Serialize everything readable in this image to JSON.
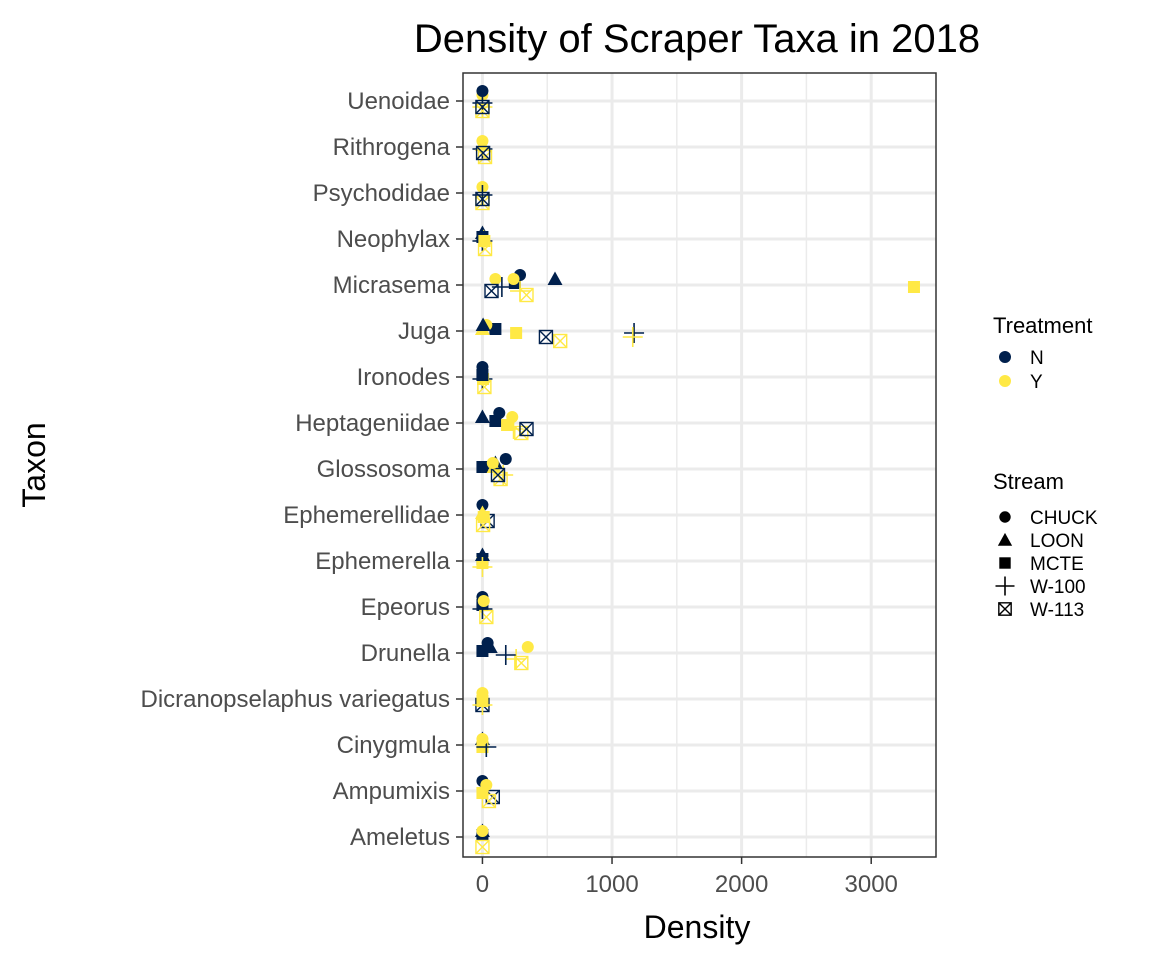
{
  "chart_data": {
    "type": "scatter",
    "title": "Density of Scraper Taxa in 2018",
    "xlabel": "Density",
    "ylabel": "Taxon",
    "xlim": [
      -150,
      3500
    ],
    "x_ticks": [
      0,
      1000,
      2000,
      3000
    ],
    "x_tick_labels": [
      "0",
      "1000",
      "2000",
      "3000"
    ],
    "categories": [
      "Uenoidae",
      "Rithrogena",
      "Psychodidae",
      "Neophylax",
      "Micrasema",
      "Juga",
      "Ironodes",
      "Heptageniidae",
      "Glossosoma",
      "Ephemerellidae",
      "Ephemerella",
      "Epeorus",
      "Drunella",
      "Dicranopselaphus variegatus",
      "Cinygmula",
      "Ampumixis",
      "Ameletus"
    ],
    "grid": true,
    "legend_position": "right",
    "legends": {
      "treatment": {
        "title": "Treatment",
        "entries": [
          {
            "label": "N",
            "color": "#00204d"
          },
          {
            "label": "Y",
            "color": "#ffe945"
          }
        ]
      },
      "stream": {
        "title": "Stream",
        "entries": [
          {
            "label": "CHUCK",
            "shape": "circle"
          },
          {
            "label": "LOON",
            "shape": "triangle"
          },
          {
            "label": "MCTE",
            "shape": "square"
          },
          {
            "label": "W-100",
            "shape": "plus"
          },
          {
            "label": "W-113",
            "shape": "boxcross"
          }
        ]
      }
    },
    "points": [
      {
        "taxon": "Uenoidae",
        "density": 0,
        "treatment": "Y",
        "stream": "CHUCK"
      },
      {
        "taxon": "Uenoidae",
        "density": 0,
        "treatment": "Y",
        "stream": "W-100"
      },
      {
        "taxon": "Uenoidae",
        "density": 0,
        "treatment": "N",
        "stream": "W-100"
      },
      {
        "taxon": "Uenoidae",
        "density": 0,
        "treatment": "N",
        "stream": "CHUCK"
      },
      {
        "taxon": "Uenoidae",
        "density": 0,
        "treatment": "Y",
        "stream": "W-113"
      },
      {
        "taxon": "Uenoidae",
        "density": 0,
        "treatment": "N",
        "stream": "W-113"
      },
      {
        "taxon": "Rithrogena",
        "density": 0,
        "treatment": "Y",
        "stream": "CHUCK"
      },
      {
        "taxon": "Rithrogena",
        "density": 0,
        "treatment": "N",
        "stream": "W-100"
      },
      {
        "taxon": "Rithrogena",
        "density": 0,
        "treatment": "Y",
        "stream": "LOON"
      },
      {
        "taxon": "Rithrogena",
        "density": 20,
        "treatment": "Y",
        "stream": "W-113"
      },
      {
        "taxon": "Rithrogena",
        "density": 5,
        "treatment": "N",
        "stream": "W-113"
      },
      {
        "taxon": "Psychodidae",
        "density": 0,
        "treatment": "Y",
        "stream": "CHUCK"
      },
      {
        "taxon": "Psychodidae",
        "density": 0,
        "treatment": "Y",
        "stream": "W-113"
      },
      {
        "taxon": "Psychodidae",
        "density": 0,
        "treatment": "N",
        "stream": "W-113"
      },
      {
        "taxon": "Psychodidae",
        "density": 0,
        "treatment": "N",
        "stream": "W-100"
      },
      {
        "taxon": "Neophylax",
        "density": 0,
        "treatment": "N",
        "stream": "W-100"
      },
      {
        "taxon": "Neophylax",
        "density": 0,
        "treatment": "N",
        "stream": "LOON"
      },
      {
        "taxon": "Neophylax",
        "density": 10,
        "treatment": "Y",
        "stream": "LOON"
      },
      {
        "taxon": "Neophylax",
        "density": 20,
        "treatment": "Y",
        "stream": "W-113"
      },
      {
        "taxon": "Neophylax",
        "density": 0,
        "treatment": "N",
        "stream": "MCTE"
      },
      {
        "taxon": "Neophylax",
        "density": 15,
        "treatment": "Y",
        "stream": "MCTE"
      },
      {
        "taxon": "Micrasema",
        "density": 3330,
        "treatment": "Y",
        "stream": "MCTE"
      },
      {
        "taxon": "Micrasema",
        "density": 560,
        "treatment": "N",
        "stream": "LOON"
      },
      {
        "taxon": "Micrasema",
        "density": 290,
        "treatment": "N",
        "stream": "CHUCK"
      },
      {
        "taxon": "Micrasema",
        "density": 250,
        "treatment": "N",
        "stream": "MCTE"
      },
      {
        "taxon": "Micrasema",
        "density": 340,
        "treatment": "Y",
        "stream": "W-113"
      },
      {
        "taxon": "Micrasema",
        "density": 240,
        "treatment": "Y",
        "stream": "CHUCK"
      },
      {
        "taxon": "Micrasema",
        "density": 100,
        "treatment": "Y",
        "stream": "CHUCK"
      },
      {
        "taxon": "Micrasema",
        "density": 70,
        "treatment": "N",
        "stream": "W-113"
      },
      {
        "taxon": "Micrasema",
        "density": 150,
        "treatment": "N",
        "stream": "W-100"
      },
      {
        "taxon": "Micrasema",
        "density": 290,
        "treatment": "Y",
        "stream": "W-100"
      },
      {
        "taxon": "Juga",
        "density": 1170,
        "treatment": "N",
        "stream": "W-100"
      },
      {
        "taxon": "Juga",
        "density": 1160,
        "treatment": "Y",
        "stream": "W-100"
      },
      {
        "taxon": "Juga",
        "density": 600,
        "treatment": "Y",
        "stream": "W-113"
      },
      {
        "taxon": "Juga",
        "density": 490,
        "treatment": "N",
        "stream": "W-113"
      },
      {
        "taxon": "Juga",
        "density": 260,
        "treatment": "Y",
        "stream": "MCTE"
      },
      {
        "taxon": "Juga",
        "density": 100,
        "treatment": "N",
        "stream": "MCTE"
      },
      {
        "taxon": "Juga",
        "density": 30,
        "treatment": "Y",
        "stream": "CHUCK"
      },
      {
        "taxon": "Juga",
        "density": 0,
        "treatment": "Y",
        "stream": "LOON"
      },
      {
        "taxon": "Juga",
        "density": 5,
        "treatment": "N",
        "stream": "LOON"
      },
      {
        "taxon": "Ironodes",
        "density": 0,
        "treatment": "N",
        "stream": "CHUCK"
      },
      {
        "taxon": "Ironodes",
        "density": 0,
        "treatment": "N",
        "stream": "W-100"
      },
      {
        "taxon": "Ironodes",
        "density": 5,
        "treatment": "Y",
        "stream": "MCTE"
      },
      {
        "taxon": "Ironodes",
        "density": 15,
        "treatment": "Y",
        "stream": "W-113"
      },
      {
        "taxon": "Ironodes",
        "density": 0,
        "treatment": "N",
        "stream": "MCTE"
      },
      {
        "taxon": "Heptageniidae",
        "density": 0,
        "treatment": "N",
        "stream": "LOON"
      },
      {
        "taxon": "Heptageniidae",
        "density": 110,
        "treatment": "Y",
        "stream": "LOON"
      },
      {
        "taxon": "Heptageniidae",
        "density": 100,
        "treatment": "N",
        "stream": "MCTE"
      },
      {
        "taxon": "Heptageniidae",
        "density": 130,
        "treatment": "N",
        "stream": "CHUCK"
      },
      {
        "taxon": "Heptageniidae",
        "density": 230,
        "treatment": "Y",
        "stream": "CHUCK"
      },
      {
        "taxon": "Heptageniidae",
        "density": 240,
        "treatment": "Y",
        "stream": "W-100"
      },
      {
        "taxon": "Heptageniidae",
        "density": 300,
        "treatment": "Y",
        "stream": "W-113"
      },
      {
        "taxon": "Heptageniidae",
        "density": 340,
        "treatment": "N",
        "stream": "W-113"
      },
      {
        "taxon": "Heptageniidae",
        "density": 190,
        "treatment": "Y",
        "stream": "MCTE"
      },
      {
        "taxon": "Glossosoma",
        "density": 0,
        "treatment": "N",
        "stream": "MCTE"
      },
      {
        "taxon": "Glossosoma",
        "density": 100,
        "treatment": "N",
        "stream": "LOON"
      },
      {
        "taxon": "Glossosoma",
        "density": 90,
        "treatment": "Y",
        "stream": "LOON"
      },
      {
        "taxon": "Glossosoma",
        "density": 180,
        "treatment": "N",
        "stream": "CHUCK"
      },
      {
        "taxon": "Glossosoma",
        "density": 160,
        "treatment": "Y",
        "stream": "W-100"
      },
      {
        "taxon": "Glossosoma",
        "density": 140,
        "treatment": "Y",
        "stream": "W-113"
      },
      {
        "taxon": "Glossosoma",
        "density": 120,
        "treatment": "N",
        "stream": "W-113"
      },
      {
        "taxon": "Glossosoma",
        "density": 80,
        "treatment": "Y",
        "stream": "CHUCK"
      },
      {
        "taxon": "Ephemerellidae",
        "density": 0,
        "treatment": "N",
        "stream": "CHUCK"
      },
      {
        "taxon": "Ephemerellidae",
        "density": 40,
        "treatment": "N",
        "stream": "W-113"
      },
      {
        "taxon": "Ephemerellidae",
        "density": 10,
        "treatment": "Y",
        "stream": "MCTE"
      },
      {
        "taxon": "Ephemerellidae",
        "density": 5,
        "treatment": "Y",
        "stream": "W-113"
      },
      {
        "taxon": "Ephemerellidae",
        "density": 0,
        "treatment": "Y",
        "stream": "LOON"
      },
      {
        "taxon": "Ephemerella",
        "density": 0,
        "treatment": "N",
        "stream": "MCTE"
      },
      {
        "taxon": "Ephemerella",
        "density": 0,
        "treatment": "Y",
        "stream": "MCTE"
      },
      {
        "taxon": "Ephemerella",
        "density": 0,
        "treatment": "N",
        "stream": "LOON"
      },
      {
        "taxon": "Ephemerella",
        "density": 0,
        "treatment": "Y",
        "stream": "W-100"
      },
      {
        "taxon": "Epeorus",
        "density": 0,
        "treatment": "N",
        "stream": "CHUCK"
      },
      {
        "taxon": "Epeorus",
        "density": 0,
        "treatment": "N",
        "stream": "MCTE"
      },
      {
        "taxon": "Epeorus",
        "density": 30,
        "treatment": "Y",
        "stream": "W-113"
      },
      {
        "taxon": "Epeorus",
        "density": 0,
        "treatment": "N",
        "stream": "W-100"
      },
      {
        "taxon": "Epeorus",
        "density": 10,
        "treatment": "Y",
        "stream": "CHUCK"
      },
      {
        "taxon": "Drunella",
        "density": 350,
        "treatment": "Y",
        "stream": "CHUCK"
      },
      {
        "taxon": "Drunella",
        "density": 300,
        "treatment": "Y",
        "stream": "W-113"
      },
      {
        "taxon": "Drunella",
        "density": 260,
        "treatment": "Y",
        "stream": "W-100"
      },
      {
        "taxon": "Drunella",
        "density": 180,
        "treatment": "N",
        "stream": "W-100"
      },
      {
        "taxon": "Drunella",
        "density": 60,
        "treatment": "N",
        "stream": "LOON"
      },
      {
        "taxon": "Drunella",
        "density": 40,
        "treatment": "N",
        "stream": "CHUCK"
      },
      {
        "taxon": "Drunella",
        "density": 0,
        "treatment": "N",
        "stream": "MCTE"
      },
      {
        "taxon": "Dicranopselaphus variegatus",
        "density": 0,
        "treatment": "Y",
        "stream": "CHUCK"
      },
      {
        "taxon": "Dicranopselaphus variegatus",
        "density": 0,
        "treatment": "N",
        "stream": "W-113"
      },
      {
        "taxon": "Dicranopselaphus variegatus",
        "density": 0,
        "treatment": "Y",
        "stream": "W-100"
      },
      {
        "taxon": "Dicranopselaphus variegatus",
        "density": 0,
        "treatment": "Y",
        "stream": "MCTE"
      },
      {
        "taxon": "Cinygmula",
        "density": 0,
        "treatment": "N",
        "stream": "LOON"
      },
      {
        "taxon": "Cinygmula",
        "density": 0,
        "treatment": "Y",
        "stream": "MCTE"
      },
      {
        "taxon": "Cinygmula",
        "density": 30,
        "treatment": "N",
        "stream": "W-100"
      },
      {
        "taxon": "Cinygmula",
        "density": 0,
        "treatment": "Y",
        "stream": "CHUCK"
      },
      {
        "taxon": "Ampumixis",
        "density": 0,
        "treatment": "N",
        "stream": "CHUCK"
      },
      {
        "taxon": "Ampumixis",
        "density": 80,
        "treatment": "N",
        "stream": "W-113"
      },
      {
        "taxon": "Ampumixis",
        "density": 30,
        "treatment": "Y",
        "stream": "CHUCK"
      },
      {
        "taxon": "Ampumixis",
        "density": 0,
        "treatment": "Y",
        "stream": "MCTE"
      },
      {
        "taxon": "Ampumixis",
        "density": 50,
        "treatment": "Y",
        "stream": "W-113"
      },
      {
        "taxon": "Ameletus",
        "density": 0,
        "treatment": "N",
        "stream": "LOON"
      },
      {
        "taxon": "Ameletus",
        "density": 0,
        "treatment": "N",
        "stream": "MCTE"
      },
      {
        "taxon": "Ameletus",
        "density": 0,
        "treatment": "Y",
        "stream": "W-113"
      },
      {
        "taxon": "Ameletus",
        "density": 0,
        "treatment": "Y",
        "stream": "CHUCK"
      }
    ]
  }
}
